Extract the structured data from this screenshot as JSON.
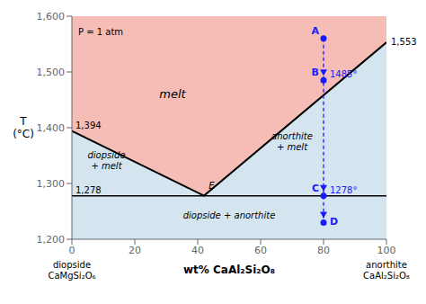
{
  "chart_data": {
    "type": "line",
    "xlabel": "wt% CaAl₂Si₂O₈",
    "ylabel": "T\n(°C)",
    "xlim": [
      0,
      100
    ],
    "ylim": [
      1200,
      1600
    ],
    "xticks": [
      0,
      20,
      40,
      60,
      80,
      100
    ],
    "yticks": [
      {
        "value": 1200,
        "label": "1,200"
      },
      {
        "value": 1300,
        "label": "1,300"
      },
      {
        "value": 1400,
        "label": "1,400"
      },
      {
        "value": 1500,
        "label": "1,500"
      },
      {
        "value": 1600,
        "label": "1,600"
      }
    ],
    "grid": false,
    "fill_colors": {
      "above": "#f5bdb5",
      "below": "#d5e5f0"
    },
    "series": [
      {
        "x": [
          0,
          42,
          100
        ],
        "values": [
          1394,
          1278,
          1553
        ],
        "color": "#000000",
        "line_style": "solid"
      },
      {
        "x": [
          80,
          80,
          80,
          80
        ],
        "values": [
          1560,
          1485,
          1278,
          1230
        ],
        "color": "#1a1aff",
        "line_style": "dashed",
        "marker": "o",
        "point_labels": [
          "A",
          "B",
          "C",
          "D"
        ]
      }
    ],
    "reference_lines": [
      {
        "y": 1278,
        "color": "#000000"
      }
    ],
    "annotations": [
      {
        "x": 0,
        "y": 1394,
        "text": "1,394"
      },
      {
        "x": 0,
        "y": 1278,
        "text": "1,278"
      },
      {
        "x": 100,
        "y": 1553,
        "text": "1,553"
      },
      {
        "x": 2,
        "y": 1578,
        "text": "P = 1 atm"
      },
      {
        "x": 80,
        "y": 1485,
        "text": "1485°",
        "color": "#1a1aff"
      },
      {
        "x": 80,
        "y": 1278,
        "text": "1278°",
        "color": "#1a1aff"
      }
    ],
    "region_labels": [
      {
        "x": 43.5,
        "y": 1290,
        "text": "E"
      },
      {
        "x": 32,
        "y": 1460,
        "text": "melt"
      },
      {
        "x": 11,
        "y": 1340,
        "text": "diopside\n+ melt"
      },
      {
        "x": 70,
        "y": 1375,
        "text": "anorthite\n+ melt"
      },
      {
        "x": 50,
        "y": 1242,
        "text": "diopside + anorthite"
      }
    ],
    "end_labels": [
      {
        "x": 0,
        "text": "diopside\nCaMgSi₂O₆"
      },
      {
        "x": 100,
        "text": "anorthite\nCaAl₂Si₂O₈"
      }
    ]
  }
}
